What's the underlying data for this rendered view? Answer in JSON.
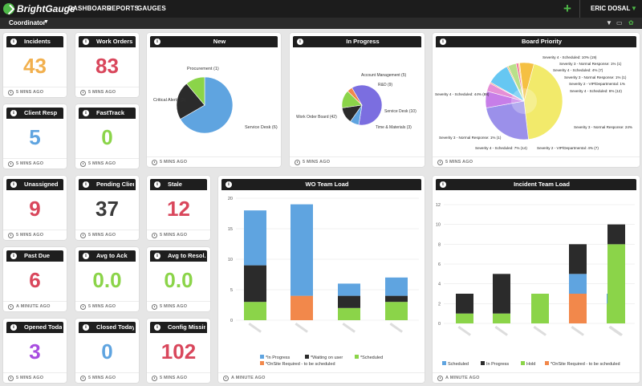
{
  "app": {
    "brand": "BrightGauge"
  },
  "nav": {
    "items": [
      "DASHBOARD",
      "REPORTS",
      "GAUGES"
    ],
    "user": "ERIC DOSAL"
  },
  "subnav": {
    "dashboard": "Coordinator"
  },
  "colors": {
    "orange": "#f2b04e",
    "red": "#d9475c",
    "blue": "#5fa4e0",
    "green": "#8bd449",
    "dark": "#3b3b3b",
    "purple": "#a84de0"
  },
  "kpis": [
    {
      "title": "Incidents",
      "value": "43",
      "color": "#f2b04e",
      "updated": "5 MINS AGO"
    },
    {
      "title": "Work Orders",
      "value": "83",
      "color": "#d9475c",
      "updated": "5 MINS AGO"
    },
    {
      "title": "Client Resp",
      "value": "5",
      "color": "#5fa4e0",
      "updated": "5 MINS AGO"
    },
    {
      "title": "FastTrack",
      "value": "0",
      "color": "#8bd449",
      "updated": "5 MINS AGO"
    },
    {
      "title": "Unassigned",
      "value": "9",
      "color": "#d9475c",
      "updated": "5 MINS AGO"
    },
    {
      "title": "Pending Client",
      "value": "37",
      "color": "#3b3b3b",
      "updated": "5 MINS AGO"
    },
    {
      "title": "Stale",
      "value": "12",
      "color": "#d9475c",
      "updated": "5 MINS AGO"
    },
    {
      "title": "Past Due",
      "value": "6",
      "color": "#d9475c",
      "updated": "A MINUTE AGO"
    },
    {
      "title": "Avg to Ack",
      "value": "0.0",
      "color": "#8bd449",
      "updated": "5 MINS AGO"
    },
    {
      "title": "Avg to Resol...",
      "value": "0.0",
      "color": "#8bd449",
      "updated": "5 MINS AGO"
    },
    {
      "title": "Opened Today",
      "value": "3",
      "color": "#a84de0",
      "updated": "5 MINS AGO"
    },
    {
      "title": "Closed Today",
      "value": "0",
      "color": "#5fa4e0",
      "updated": "5 MINS AGO"
    },
    {
      "title": "Config Missing",
      "value": "102",
      "color": "#d9475c",
      "updated": "5 MINS AGO"
    }
  ],
  "charts": {
    "new": {
      "title": "New",
      "updated": "5 MINS AGO"
    },
    "progress": {
      "title": "In Progress",
      "updated": "5 MINS AGO"
    },
    "priority": {
      "title": "Board Priority",
      "updated": "5 MINS AGO"
    },
    "wo": {
      "title": "WO Team Load",
      "updated": "A MINUTE AGO"
    },
    "incident": {
      "title": "Incident Team Load",
      "updated": "A MINUTE AGO"
    }
  },
  "chart_data": [
    {
      "type": "pie",
      "title": "New",
      "labels": [
        "Service Desk (6)",
        "Critical Alerts (2)",
        "Procurement (1)"
      ],
      "values": [
        6,
        2,
        1
      ],
      "colors": [
        "#5fa4e0",
        "#2b2b2b",
        "#8bd449"
      ]
    },
    {
      "type": "pie",
      "title": "In Progress",
      "labels": [
        "Work Order Board (42)",
        "Account Management (5)",
        "R&D (9)",
        "Service Desk (10)",
        "Time & Materials (3)"
      ],
      "values": [
        42,
        5,
        9,
        10,
        3
      ],
      "colors": [
        "#7b6ee0",
        "#5fa4e0",
        "#2b2b2b",
        "#8bd449",
        "#f2884b"
      ]
    },
    {
      "type": "pie",
      "title": "Board Priority",
      "labels": [
        "Severity 4 - Scheduled: 44% (88)",
        "Severity 3 - Normal Response: 24%",
        "Severity 4 - Scheduled: 7% (14)",
        "Severity 2 - VIP/Departmental: 4% (7)",
        "Severity 3 - Normal Response: 1% (1)",
        "Severity 4 - Scheduled: 10% (19)",
        "Severity 3 - Normal Response: 1% (1)",
        "Severity 4 - Scheduled: 4% (7)",
        "Severity 2 - VIP/Departmental: 1%",
        "Severity 3 - Normal Response: 1% (1)",
        "Severity 4 - Scheduled: 6% (12)"
      ],
      "values": [
        88,
        48,
        14,
        7,
        1,
        19,
        1,
        7,
        2,
        1,
        12
      ]
    },
    {
      "type": "bar",
      "title": "WO Team Load",
      "categories": [
        "",
        "",
        "",
        ""
      ],
      "ylim": [
        0,
        20
      ],
      "yticks": [
        0,
        5,
        10,
        15,
        20
      ],
      "series": [
        {
          "name": "*Scheduled",
          "color": "#8bd449",
          "values": [
            3,
            0,
            2,
            3
          ]
        },
        {
          "name": "*OnSite Required - to be scheduled",
          "color": "#f2884b",
          "values": [
            0,
            4,
            0,
            0
          ]
        },
        {
          "name": "*Waiting on user",
          "color": "#2b2b2b",
          "values": [
            6,
            0,
            2,
            1
          ]
        },
        {
          "name": "*In Progress",
          "color": "#5fa4e0",
          "values": [
            9,
            15,
            2,
            3
          ]
        }
      ],
      "legend": [
        "*In Progress",
        "*Waiting on user",
        "*Scheduled",
        "*OnSite Required - to be scheduled"
      ]
    },
    {
      "type": "bar",
      "title": "Incident Team Load",
      "categories": [
        "",
        "",
        "",
        "",
        "",
        ""
      ],
      "ylim": [
        0,
        12
      ],
      "yticks": [
        0,
        2,
        4,
        6,
        8,
        10,
        12
      ],
      "series": [
        {
          "name": "Hold",
          "color": "#8bd449",
          "values": [
            1,
            1,
            3,
            0,
            2,
            8
          ]
        },
        {
          "name": "*OnSite Required - to be scheduled",
          "color": "#f2884b",
          "values": [
            0,
            0,
            0,
            3,
            0,
            0
          ]
        },
        {
          "name": "Scheduled",
          "color": "#5fa4e0",
          "values": [
            0,
            0,
            0,
            2,
            1,
            0
          ]
        },
        {
          "name": "In Progress",
          "color": "#2b2b2b",
          "values": [
            2,
            4,
            0,
            3,
            0,
            2
          ]
        }
      ],
      "legend": [
        "Scheduled",
        "In Progress",
        "Hold",
        "*OnSite Required - to be scheduled"
      ]
    }
  ]
}
